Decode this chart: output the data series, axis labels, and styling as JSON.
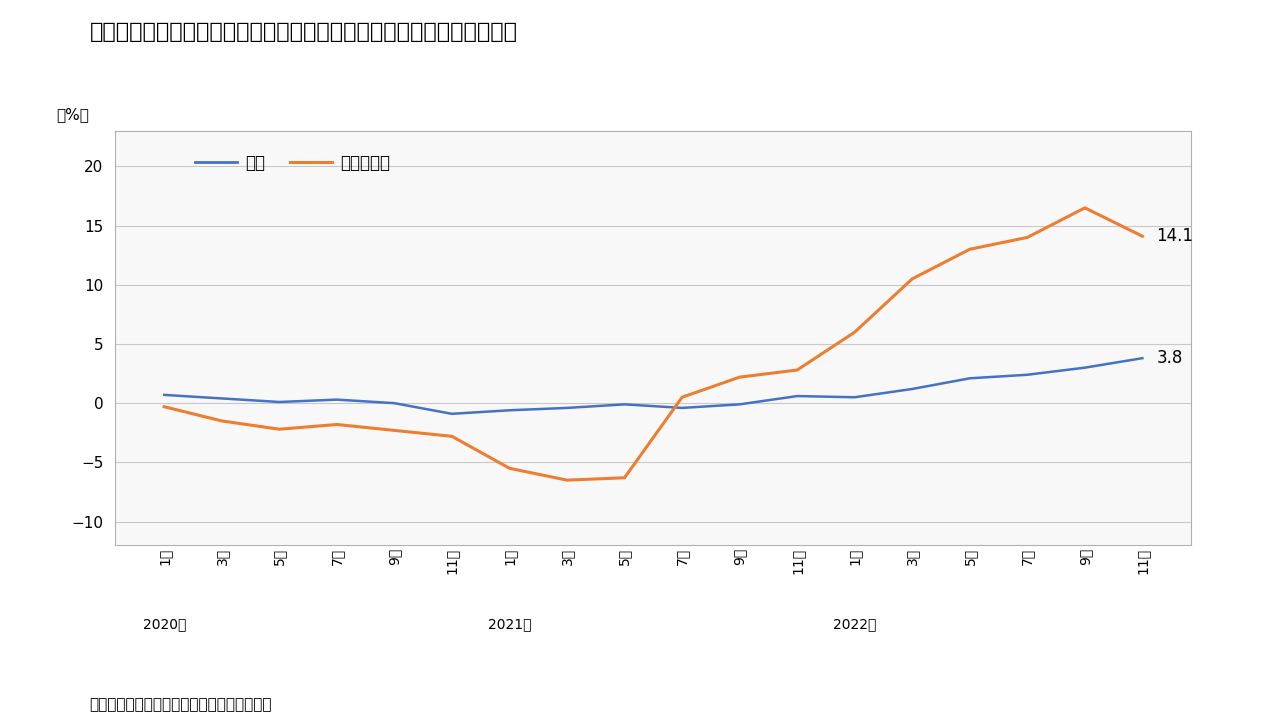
{
  "title": "図表３　消費者物価指数の総合と「光熱・水道」の推移（前年同月比）",
  "footer": "（資料）総務省「消費者物価指数」より作成",
  "ylabel": "（%）",
  "ylim": [
    -12,
    23
  ],
  "yticks": [
    -10,
    -5,
    0,
    5,
    10,
    15,
    20
  ],
  "line_sougo_label": "総合",
  "line_konetsu_label": "光熱・水道",
  "line_sougo_color": "#4472C4",
  "line_konetsu_color": "#ED7D31",
  "last_sougo_value": "3.8",
  "last_konetsu_value": "14.1",
  "month_labels": [
    "1月",
    "3月",
    "5月",
    "7月",
    "9月",
    "11月",
    "1月",
    "3月",
    "5月",
    "7月",
    "9月",
    "11月",
    "1月",
    "3月",
    "5月",
    "7月",
    "9月",
    "11月"
  ],
  "year_labels": {
    "0": "2020年",
    "6": "2021年",
    "12": "2022年"
  },
  "sougo": [
    0.7,
    0.4,
    0.1,
    0.3,
    0.0,
    -0.9,
    -0.6,
    -0.4,
    -0.1,
    -0.4,
    -0.1,
    0.6,
    0.5,
    1.2,
    2.1,
    2.4,
    3.0,
    3.8
  ],
  "konetsu": [
    -0.3,
    -1.5,
    -2.2,
    -1.8,
    -2.3,
    -2.8,
    -5.5,
    -6.5,
    -6.3,
    0.5,
    2.2,
    2.8,
    6.0,
    10.5,
    13.0,
    14.0,
    16.5,
    14.1
  ],
  "background_color": "#ffffff",
  "plot_bg_color": "#f8f8f8",
  "grid_color": "#c8c8c8",
  "box_color": "#b0b0b0"
}
